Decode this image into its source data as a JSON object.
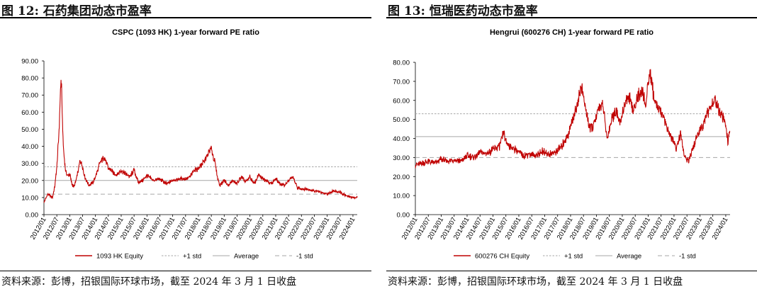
{
  "left": {
    "figure_title": "图 12: 石药集团动态市盈率",
    "source": "资料来源：彭博，招银国际环球市场，截至 2024 年 3 月 1 日收盘"
  },
  "right": {
    "figure_title": "图 13: 恒瑞医药动态市盈率",
    "source": "资料来源：彭博，招银国际环球市场，截至 2024 年 3 月 1 日收盘"
  },
  "colors": {
    "series": "#c00000",
    "std": "#a6a6a6",
    "average": "#a6a6a6"
  },
  "chart_data": [
    {
      "type": "line",
      "title": "CSPC (1093 HK) 1-year forward PE ratio",
      "xlabel": "",
      "ylabel": "",
      "ylim": [
        0,
        90
      ],
      "yticks": [
        "0.00",
        "10.00",
        "20.00",
        "30.00",
        "40.00",
        "50.00",
        "60.00",
        "70.00",
        "80.00",
        "90.00"
      ],
      "xticks": [
        "2012/01",
        "2012/07",
        "2013/01",
        "2013/07",
        "2014/01",
        "2014/07",
        "2015/01",
        "2015/07",
        "2016/01",
        "2016/07",
        "2017/01",
        "2017/07",
        "2018/01",
        "2018/07",
        "2019/01",
        "2019/07",
        "2020/01",
        "2020/07",
        "2021/01",
        "2021/07",
        "2022/01",
        "2022/07",
        "2023/01",
        "2023/07",
        "2024/01"
      ],
      "legend": [
        "1093 HK Equity",
        "+1 std",
        "Average",
        "-1 std"
      ],
      "legend_position": "bottom",
      "ref_lines": {
        "plus_1_std": 28,
        "average": 20,
        "minus_1_std": 12
      },
      "series": [
        {
          "name": "1093 HK Equity",
          "x": [
            "2012/01",
            "2012/02",
            "2012/03",
            "2012/04",
            "2012/05",
            "2012/06",
            "2012/07",
            "2012/08",
            "2012/09",
            "2012/10",
            "2012/11",
            "2012/12",
            "2013/01",
            "2013/02",
            "2013/03",
            "2013/04",
            "2013/06",
            "2013/07",
            "2013/08",
            "2013/10",
            "2013/12",
            "2014/01",
            "2014/03",
            "2014/05",
            "2014/07",
            "2014/09",
            "2014/11",
            "2015/01",
            "2015/03",
            "2015/05",
            "2015/07",
            "2015/09",
            "2015/11",
            "2016/01",
            "2016/04",
            "2016/07",
            "2016/10",
            "2017/01",
            "2017/04",
            "2017/07",
            "2017/09",
            "2017/11",
            "2018/01",
            "2018/03",
            "2018/05",
            "2018/06",
            "2018/07",
            "2018/08",
            "2018/09",
            "2018/10",
            "2018/11",
            "2019/01",
            "2019/03",
            "2019/05",
            "2019/07",
            "2019/09",
            "2019/11",
            "2020/01",
            "2020/03",
            "2020/05",
            "2020/07",
            "2020/09",
            "2020/11",
            "2021/01",
            "2021/03",
            "2021/05",
            "2021/07",
            "2021/09",
            "2021/11",
            "2022/01",
            "2022/04",
            "2022/07",
            "2022/10",
            "2023/01",
            "2023/04",
            "2023/07",
            "2023/10",
            "2024/01",
            "2024/03"
          ],
          "values": [
            7,
            10,
            12,
            11,
            10,
            16,
            28,
            48,
            82,
            40,
            26,
            23,
            24,
            18,
            16,
            20,
            32,
            28,
            22,
            17,
            19,
            22,
            30,
            34,
            27,
            25,
            23,
            26,
            24,
            22,
            26,
            19,
            20,
            23,
            20,
            21,
            18,
            20,
            21,
            21,
            22,
            26,
            27,
            30,
            34,
            37,
            39,
            33,
            29,
            21,
            17,
            20,
            17,
            20,
            18,
            22,
            19,
            22,
            18,
            23,
            21,
            20,
            18,
            21,
            18,
            17,
            20,
            22,
            16,
            15,
            15,
            14,
            13,
            12,
            14,
            13,
            11,
            10,
            10
          ]
        }
      ]
    },
    {
      "type": "line",
      "title": "Hengrui (600276 CH) 1-year forward PE ratio",
      "xlabel": "",
      "ylabel": "",
      "ylim": [
        0,
        80
      ],
      "yticks": [
        "0.00",
        "10.00",
        "20.00",
        "30.00",
        "40.00",
        "50.00",
        "60.00",
        "70.00",
        "80.00"
      ],
      "xticks": [
        "2012/01",
        "2012/07",
        "2013/01",
        "2013/07",
        "2014/01",
        "2014/07",
        "2015/01",
        "2015/07",
        "2016/01",
        "2016/07",
        "2017/01",
        "2017/07",
        "2018/01",
        "2018/07",
        "2019/01",
        "2019/07",
        "2020/01",
        "2020/07",
        "2021/01",
        "2021/07",
        "2022/01",
        "2022/07",
        "2023/01",
        "2023/07",
        "2024/01"
      ],
      "legend": [
        "600276 CH Equity",
        "+1 std",
        "Average",
        "-1 std"
      ],
      "legend_position": "bottom",
      "ref_lines": {
        "plus_1_std": 53,
        "average": 41,
        "minus_1_std": 30
      },
      "series": [
        {
          "name": "600276 CH Equity",
          "x": [
            "2012/01",
            "2012/04",
            "2012/07",
            "2012/10",
            "2013/01",
            "2013/04",
            "2013/07",
            "2013/10",
            "2014/01",
            "2014/04",
            "2014/07",
            "2014/10",
            "2015/01",
            "2015/04",
            "2015/06",
            "2015/07",
            "2015/09",
            "2015/12",
            "2016/03",
            "2016/06",
            "2016/09",
            "2016/12",
            "2017/03",
            "2017/06",
            "2017/09",
            "2017/12",
            "2018/02",
            "2018/04",
            "2018/06",
            "2018/08",
            "2018/10",
            "2018/12",
            "2019/02",
            "2019/04",
            "2019/06",
            "2019/08",
            "2019/10",
            "2019/12",
            "2020/02",
            "2020/04",
            "2020/06",
            "2020/08",
            "2020/10",
            "2020/12",
            "2021/01",
            "2021/02",
            "2021/04",
            "2021/06",
            "2021/08",
            "2021/10",
            "2021/12",
            "2022/02",
            "2022/04",
            "2022/06",
            "2022/08",
            "2022/10",
            "2022/12",
            "2023/02",
            "2023/04",
            "2023/06",
            "2023/08",
            "2023/10",
            "2023/12",
            "2024/01",
            "2024/02",
            "2024/03"
          ],
          "values": [
            26,
            27,
            28,
            27,
            29,
            28,
            29,
            28,
            31,
            30,
            33,
            32,
            34,
            36,
            43,
            38,
            36,
            34,
            31,
            32,
            31,
            33,
            32,
            33,
            36,
            42,
            50,
            58,
            67,
            55,
            45,
            48,
            56,
            58,
            40,
            50,
            55,
            48,
            58,
            62,
            55,
            62,
            65,
            58,
            70,
            74,
            60,
            55,
            52,
            45,
            40,
            35,
            42,
            30,
            28,
            36,
            42,
            46,
            52,
            56,
            60,
            55,
            50,
            47,
            38,
            45
          ]
        }
      ]
    }
  ]
}
